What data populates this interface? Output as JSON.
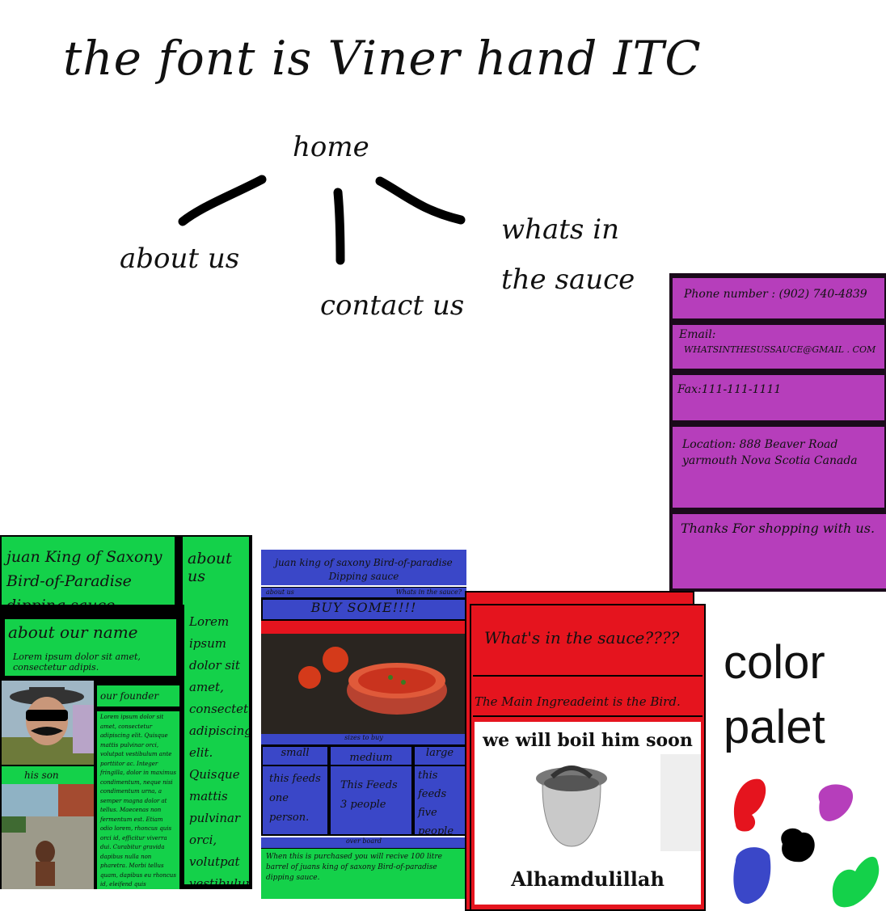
{
  "title": "the font is Viner hand ITC",
  "sitemap": {
    "home": "home",
    "about": "about us",
    "contact": "contact us",
    "sauce": "whats in the sauce"
  },
  "contact": {
    "phone": "Phone number : (902) 740-4839",
    "email_label": "Email:",
    "email": "WHATSINTHESUSSAUCE@GMAIL . COM",
    "fax": "Fax:111-111-1111",
    "location_1": "Location: 888 Beaver Road",
    "location_2": "yarmouth Nova Scotia Canada",
    "thanks": "Thanks For shopping with us."
  },
  "about_mock": {
    "brand": "juan King of Saxony Bird-of-Paradise dipping sauce",
    "nav": "about us",
    "name_heading": "about our name",
    "name_text": "Lorem ipsum dolor sit amet, consectetur adipis.",
    "founder_label": "our founder",
    "founder_text": "Lorem ipsum dolor sit amet, consectetur adipiscing elit. Quisque mattis pulvinar orci, volutpat vestibulum ante porttitor ac. Integer fringilla, dolor in maximus condimentum, neque nisi condimentum urna, a semper magna dolor at tellus. Maecenas non fermentum est. Etiam odio lorem, rhoncus quis orci id, efficitur viverra dui. Curabitur gravida dapibus nulla non pharetra. Morbi tellus quam, dapibus eu rhoncus id, eleifend quis gravimod.",
    "side_text": "Lorem ipsum dolor sit amet, consectetur adipiscing elit. Quisque mattis pulvinar orci, volutpat vestibulum ante porttitor ac. Integer fringilla, dolor in maxim.",
    "son_label": "his son"
  },
  "home_mock": {
    "brand": "juan king of saxony Bird-of-paradise Dipping sauce",
    "nav_left": "about us",
    "nav_right": "Whats in the sauce?",
    "buy": "BUY SOME!!!!",
    "sizes_label": "sizes to buy",
    "sizes": [
      {
        "name": "small",
        "desc": "this feeds one person."
      },
      {
        "name": "medium",
        "desc": "This Feeds 3 people"
      },
      {
        "name": "large",
        "desc": "this feeds five people"
      }
    ],
    "overboard_label": "over board",
    "overboard_text": "When this is purchased you will recive 100 litre barrel of juans king of saxony Bird-of-paradise dipping sauce."
  },
  "sauce_mock": {
    "heading": "What's in the sauce????",
    "main": "The Main Ingreadeint is the Bird.",
    "meme_top": "we will boil him soon",
    "meme_bottom": "Alhamdulillah"
  },
  "palette": {
    "label": "color palet",
    "colors": [
      "#e5141e",
      "#b63ebb",
      "#000000",
      "#3a47c8",
      "#14d14a"
    ]
  }
}
